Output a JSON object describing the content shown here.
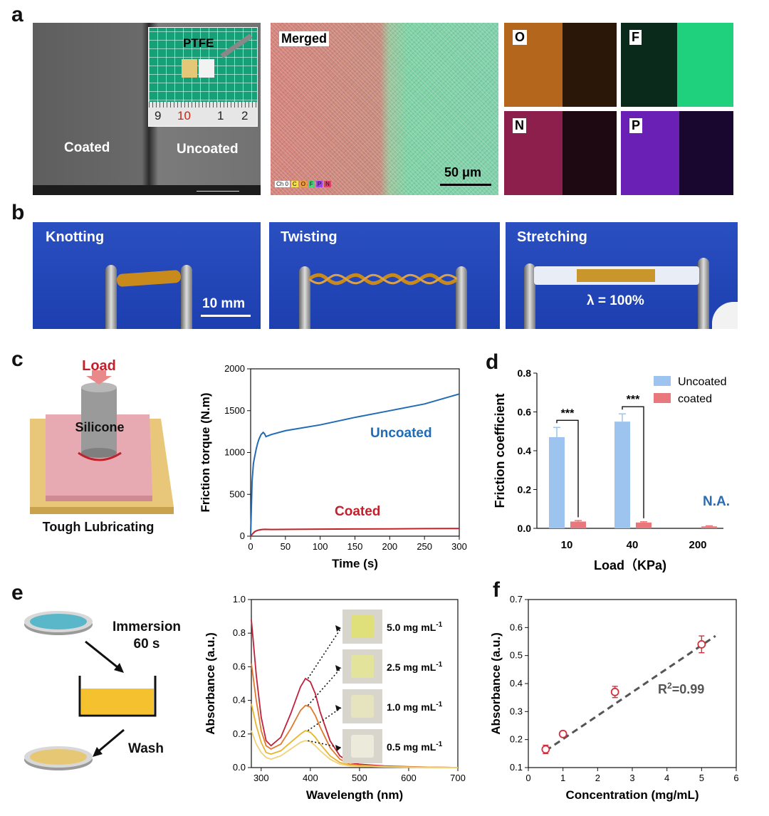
{
  "panel_labels": {
    "a": "a",
    "b": "b",
    "c": "c",
    "d": "d",
    "e": "e",
    "f": "f"
  },
  "panel_a": {
    "sem_coated": "Coated",
    "sem_uncoated": "Uncoated",
    "inset_label": "PTFE",
    "ruler_numbers": [
      "9",
      "10",
      "1",
      "2"
    ],
    "merged_label": "Merged",
    "scale_bar": "50 μm",
    "channel_legend": [
      "Ch 0",
      "C",
      "O",
      "F",
      "P",
      "N"
    ],
    "element_maps": [
      {
        "label": "O",
        "color": "#b4661c"
      },
      {
        "label": "F",
        "color": "#1fd17c"
      },
      {
        "label": "N",
        "color": "#b0255e"
      },
      {
        "label": "P",
        "color": "#6a1fb5"
      }
    ]
  },
  "panel_b": {
    "photos": [
      "Knotting",
      "Twisting",
      "Stretching"
    ],
    "scale_bar": "10 mm",
    "strain": "λ = 100%"
  },
  "panel_c": {
    "load_label": "Load",
    "silicone_label": "Silicone",
    "substrate_label": "Tough Lubricating"
  },
  "panel_e": {
    "immersion_line1": "Immersion",
    "immersion_line2": "60 s",
    "wash_label": "Wash",
    "vial_labels": [
      "5.0 mg mL",
      "2.5 mg mL",
      "1.0 mg mL",
      "0.5 mg mL"
    ],
    "vial_sup": "-1"
  },
  "chart_data": [
    {
      "id": "c",
      "type": "line",
      "xlabel": "Time (s)",
      "ylabel": "Friction torque (N.m)",
      "xlim": [
        0,
        300
      ],
      "ylim": [
        0,
        2000
      ],
      "xticks": [
        0,
        50,
        100,
        150,
        200,
        250,
        300
      ],
      "yticks": [
        0,
        500,
        1000,
        1500,
        2000
      ],
      "series": [
        {
          "name": "Uncoated",
          "color": "#1f6bb5",
          "x": [
            0,
            2,
            4,
            6,
            8,
            10,
            12,
            15,
            18,
            20,
            22,
            25,
            30,
            50,
            100,
            150,
            200,
            250,
            300
          ],
          "y": [
            0,
            650,
            870,
            960,
            1040,
            1110,
            1160,
            1215,
            1240,
            1225,
            1190,
            1200,
            1215,
            1260,
            1330,
            1420,
            1500,
            1580,
            1700
          ]
        },
        {
          "name": "Coated",
          "color": "#c0212b",
          "x": [
            0,
            3,
            6,
            10,
            15,
            20,
            30,
            60,
            100,
            150,
            200,
            250,
            300
          ],
          "y": [
            0,
            30,
            55,
            70,
            78,
            82,
            80,
            82,
            84,
            86,
            88,
            90,
            92
          ]
        }
      ]
    },
    {
      "id": "d",
      "type": "bar",
      "xlabel": "Load（KPa)",
      "ylabel": "Friction coefficient",
      "categories": [
        "10",
        "40",
        "200"
      ],
      "ylim": [
        0,
        0.8
      ],
      "yticks": [
        "0.0",
        "0.2",
        "0.4",
        "0.6",
        "0.8"
      ],
      "series": [
        {
          "name": "Uncoated",
          "color": "#9dc4ee",
          "values": [
            0.47,
            0.55,
            null
          ],
          "errors": [
            0.05,
            0.04,
            null
          ]
        },
        {
          "name": "coated",
          "color": "#e8787c",
          "values": [
            0.035,
            0.03,
            0.01
          ],
          "errors": [
            0.005,
            0.004,
            0.003
          ]
        }
      ],
      "significance": [
        "***",
        "***"
      ],
      "na_label": "N.A."
    },
    {
      "id": "e",
      "type": "line",
      "xlabel": "Wavelength (nm)",
      "ylabel": "Absorbance (a.u.)",
      "xlim": [
        280,
        700
      ],
      "ylim": [
        0,
        1.0
      ],
      "xticks": [
        300,
        400,
        500,
        600,
        700
      ],
      "yticks": [
        "0.0",
        "0.2",
        "0.4",
        "0.6",
        "0.8",
        "1.0"
      ],
      "series": [
        {
          "color": "#c0203a",
          "x": [
            280,
            290,
            300,
            310,
            320,
            340,
            360,
            380,
            390,
            400,
            410,
            420,
            440,
            460,
            480,
            500,
            550,
            600,
            650,
            700
          ],
          "y": [
            0.88,
            0.55,
            0.3,
            0.16,
            0.13,
            0.18,
            0.32,
            0.48,
            0.53,
            0.51,
            0.44,
            0.33,
            0.16,
            0.07,
            0.03,
            0.02,
            0.01,
            0.005,
            0.002,
            0.0
          ]
        },
        {
          "color": "#e07a2a",
          "x": [
            280,
            290,
            300,
            310,
            320,
            340,
            360,
            380,
            390,
            400,
            410,
            420,
            440,
            460,
            480,
            500,
            550,
            600,
            650,
            700
          ],
          "y": [
            0.62,
            0.4,
            0.22,
            0.13,
            0.11,
            0.14,
            0.23,
            0.34,
            0.37,
            0.36,
            0.31,
            0.24,
            0.12,
            0.05,
            0.02,
            0.015,
            0.008,
            0.004,
            0.002,
            0.0
          ]
        },
        {
          "color": "#e8b52a",
          "x": [
            280,
            290,
            300,
            310,
            320,
            340,
            360,
            380,
            390,
            400,
            410,
            420,
            440,
            460,
            480,
            500,
            550,
            600,
            650,
            700
          ],
          "y": [
            0.38,
            0.25,
            0.15,
            0.09,
            0.08,
            0.1,
            0.15,
            0.2,
            0.22,
            0.21,
            0.18,
            0.14,
            0.07,
            0.03,
            0.015,
            0.01,
            0.005,
            0.003,
            0.001,
            0.0
          ]
        },
        {
          "color": "#f0d27a",
          "x": [
            280,
            290,
            300,
            310,
            320,
            340,
            360,
            380,
            390,
            400,
            410,
            420,
            440,
            460,
            480,
            500,
            550,
            600,
            650,
            700
          ],
          "y": [
            0.22,
            0.14,
            0.09,
            0.06,
            0.05,
            0.07,
            0.11,
            0.15,
            0.16,
            0.155,
            0.13,
            0.1,
            0.05,
            0.02,
            0.01,
            0.008,
            0.004,
            0.002,
            0.001,
            0.0
          ]
        }
      ]
    },
    {
      "id": "f",
      "type": "scatter",
      "xlabel": "Concentration (mg/mL)",
      "ylabel": "Absorbance (a.u.)",
      "xlim": [
        0,
        6
      ],
      "ylim": [
        0.1,
        0.7
      ],
      "xticks": [
        0,
        1,
        2,
        3,
        4,
        5,
        6
      ],
      "yticks": [
        "0.1",
        "0.2",
        "0.3",
        "0.4",
        "0.5",
        "0.6",
        "0.7"
      ],
      "points": [
        {
          "x": 0.5,
          "y": 0.165,
          "err": 0.015
        },
        {
          "x": 1.0,
          "y": 0.22,
          "err": 0.01
        },
        {
          "x": 2.5,
          "y": 0.37,
          "err": 0.02
        },
        {
          "x": 5.0,
          "y": 0.54,
          "err": 0.03
        }
      ],
      "fit": {
        "x": [
          0.5,
          5.4
        ],
        "y": [
          0.16,
          0.57
        ]
      },
      "annotation_base": "R",
      "annotation_sup": "2",
      "annotation_rest": "=0.99"
    }
  ]
}
